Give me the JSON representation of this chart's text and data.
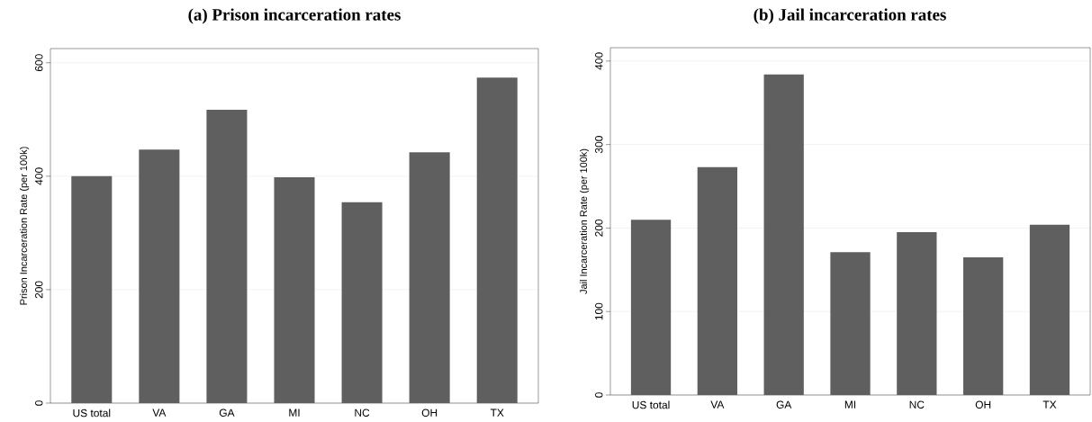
{
  "chart_data": [
    {
      "type": "bar",
      "title": "(a) Prison incarceration rates",
      "ylabel": "Prison Incarceration Rate (per 100k)",
      "categories": [
        "US total",
        "VA",
        "GA",
        "MI",
        "NC",
        "OH",
        "TX"
      ],
      "values": [
        400,
        447,
        517,
        398,
        354,
        442,
        574
      ],
      "color": "#5f5f5f",
      "ylim": [
        0,
        625
      ],
      "yticks": [
        0,
        200,
        400,
        600
      ],
      "grid": "y"
    },
    {
      "type": "bar",
      "title": "(b) Jail incarceration rates",
      "ylabel": "Jail Incarceration Rate (per 100k)",
      "categories": [
        "US total",
        "VA",
        "GA",
        "MI",
        "NC",
        "OH",
        "TX"
      ],
      "values": [
        210,
        273,
        384,
        171,
        195,
        165,
        204
      ],
      "color": "#5f5f5f",
      "ylim": [
        0,
        416
      ],
      "yticks": [
        0,
        100,
        200,
        300,
        400
      ],
      "grid": "y"
    }
  ]
}
